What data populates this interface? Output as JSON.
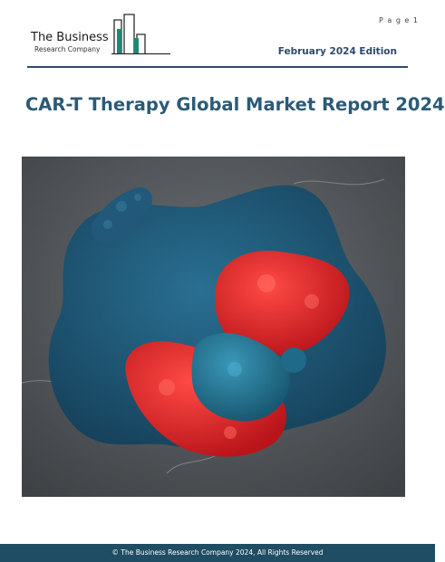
{
  "header": {
    "page_label": "P a g e  1",
    "logo_line1": "The Business",
    "logo_line2": "Research Company",
    "edition": "February 2024 Edition"
  },
  "document": {
    "title": "CAR-T Therapy Global Market Report 2024"
  },
  "cover_image": {
    "subject": "micrograph",
    "colors": {
      "background": "#555a5e",
      "cell_blue": "#1e5a7a",
      "cell_red": "#e8262a"
    }
  },
  "footer": {
    "copyright": "© The Business Research Company 2024, All Rights Reserved"
  },
  "theme": {
    "accent": "#2e4a6b",
    "title_color": "#2b5a77",
    "footer_bg": "#1f4d63",
    "logo_green": "#1f8a74"
  }
}
